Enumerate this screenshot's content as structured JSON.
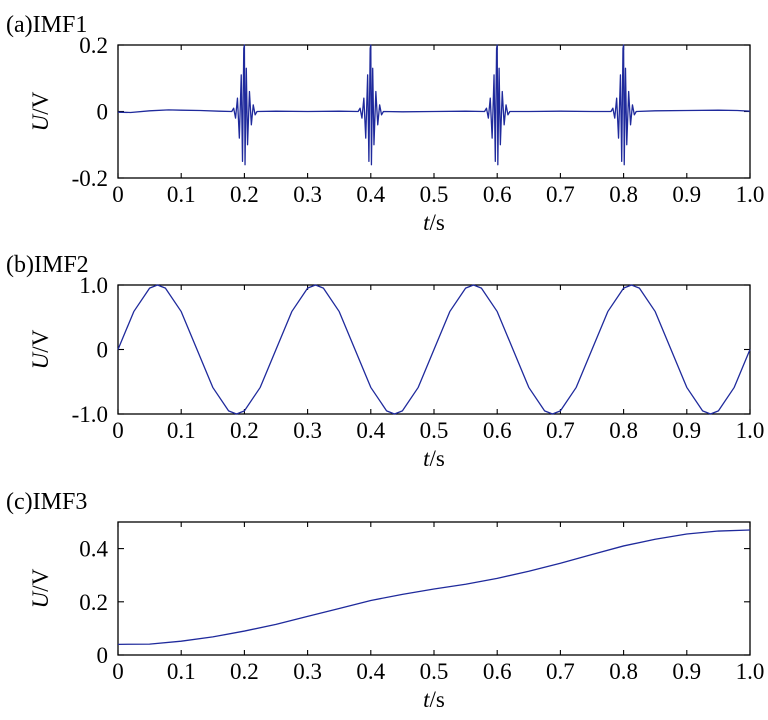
{
  "chart_data": [
    {
      "type": "line",
      "title": "(a)IMF1",
      "xlabel": {
        "italic": "t",
        "rest": "/s"
      },
      "ylabel": {
        "italic": "U",
        "rest": "/V"
      },
      "xlim": [
        0,
        1.0
      ],
      "ylim": [
        -0.2,
        0.2
      ],
      "xticks": [
        0,
        0.1,
        0.2,
        0.3,
        0.4,
        0.5,
        0.6,
        0.7,
        0.8,
        0.9,
        1.0
      ],
      "xtick_labels": [
        "0",
        "0.1",
        "0.2",
        "0.3",
        "0.4",
        "0.5",
        "0.6",
        "0.7",
        "0.8",
        "0.9",
        "1.0"
      ],
      "yticks": [
        -0.2,
        0,
        0.2
      ],
      "ytick_labels": [
        "-0.2",
        "0",
        "0.2"
      ],
      "grid": false,
      "color": "#1f2a9c",
      "series": [
        {
          "points": [
            [
              0,
              -0.002
            ],
            [
              0.02,
              -0.003
            ],
            [
              0.05,
              0.002
            ],
            [
              0.08,
              0.005
            ],
            [
              0.1,
              0.004
            ],
            [
              0.13,
              0.003
            ],
            [
              0.16,
              0.001
            ],
            [
              0.18,
              0
            ],
            [
              0.183,
              0.01
            ],
            [
              0.186,
              -0.02
            ],
            [
              0.189,
              0.04
            ],
            [
              0.192,
              -0.08
            ],
            [
              0.195,
              0.11
            ],
            [
              0.197,
              -0.15
            ],
            [
              0.199,
              0.19
            ],
            [
              0.2,
              0.2
            ],
            [
              0.201,
              -0.16
            ],
            [
              0.203,
              0.13
            ],
            [
              0.205,
              -0.1
            ],
            [
              0.208,
              0.06
            ],
            [
              0.211,
              -0.04
            ],
            [
              0.214,
              0.02
            ],
            [
              0.217,
              -0.01
            ],
            [
              0.22,
              0
            ],
            [
              0.25,
              0.001
            ],
            [
              0.3,
              0
            ],
            [
              0.35,
              0.001
            ],
            [
              0.38,
              0
            ],
            [
              0.383,
              0.01
            ],
            [
              0.386,
              -0.02
            ],
            [
              0.389,
              0.04
            ],
            [
              0.392,
              -0.08
            ],
            [
              0.395,
              0.11
            ],
            [
              0.397,
              -0.15
            ],
            [
              0.399,
              0.19
            ],
            [
              0.4,
              0.2
            ],
            [
              0.401,
              -0.16
            ],
            [
              0.403,
              0.13
            ],
            [
              0.405,
              -0.1
            ],
            [
              0.408,
              0.06
            ],
            [
              0.411,
              -0.04
            ],
            [
              0.414,
              0.02
            ],
            [
              0.417,
              -0.01
            ],
            [
              0.42,
              0
            ],
            [
              0.45,
              -0.001
            ],
            [
              0.5,
              0
            ],
            [
              0.55,
              0.001
            ],
            [
              0.58,
              0
            ],
            [
              0.583,
              0.01
            ],
            [
              0.586,
              -0.02
            ],
            [
              0.589,
              0.04
            ],
            [
              0.592,
              -0.08
            ],
            [
              0.595,
              0.11
            ],
            [
              0.597,
              -0.15
            ],
            [
              0.599,
              0.19
            ],
            [
              0.6,
              0.2
            ],
            [
              0.601,
              -0.16
            ],
            [
              0.603,
              0.13
            ],
            [
              0.605,
              -0.1
            ],
            [
              0.608,
              0.06
            ],
            [
              0.611,
              -0.04
            ],
            [
              0.614,
              0.02
            ],
            [
              0.617,
              -0.01
            ],
            [
              0.62,
              0
            ],
            [
              0.65,
              0
            ],
            [
              0.7,
              0.001
            ],
            [
              0.75,
              0
            ],
            [
              0.78,
              0
            ],
            [
              0.783,
              0.01
            ],
            [
              0.786,
              -0.02
            ],
            [
              0.789,
              0.04
            ],
            [
              0.792,
              -0.08
            ],
            [
              0.795,
              0.11
            ],
            [
              0.797,
              -0.15
            ],
            [
              0.799,
              0.19
            ],
            [
              0.8,
              0.2
            ],
            [
              0.801,
              -0.16
            ],
            [
              0.803,
              0.13
            ],
            [
              0.805,
              -0.1
            ],
            [
              0.808,
              0.06
            ],
            [
              0.811,
              -0.04
            ],
            [
              0.814,
              0.02
            ],
            [
              0.817,
              -0.01
            ],
            [
              0.82,
              0
            ],
            [
              0.85,
              0.002
            ],
            [
              0.9,
              0.003
            ],
            [
              0.95,
              0.004
            ],
            [
              0.98,
              0.003
            ],
            [
              1.0,
              0.001
            ]
          ]
        }
      ]
    },
    {
      "type": "line",
      "title": "(b)IMF2",
      "xlabel": {
        "italic": "t",
        "rest": "/s"
      },
      "ylabel": {
        "italic": "U",
        "rest": "/V"
      },
      "xlim": [
        0,
        1.0
      ],
      "ylim": [
        -1.0,
        1.0
      ],
      "xticks": [
        0,
        0.1,
        0.2,
        0.3,
        0.4,
        0.5,
        0.6,
        0.7,
        0.8,
        0.9,
        1.0
      ],
      "xtick_labels": [
        "0",
        "0.1",
        "0.2",
        "0.3",
        "0.4",
        "0.5",
        "0.6",
        "0.7",
        "0.8",
        "0.9",
        "1.0"
      ],
      "yticks": [
        -1.0,
        0,
        1.0
      ],
      "ytick_labels": [
        "-1.0",
        "0",
        "1.0"
      ],
      "grid": false,
      "color": "#1f2a9c",
      "series": [
        {
          "points": [
            [
              0,
              0
            ],
            [
              0.025,
              0.588
            ],
            [
              0.05,
              0.951
            ],
            [
              0.0625,
              1.0
            ],
            [
              0.075,
              0.951
            ],
            [
              0.1,
              0.588
            ],
            [
              0.125,
              0
            ],
            [
              0.15,
              -0.588
            ],
            [
              0.175,
              -0.951
            ],
            [
              0.1875,
              -1.0
            ],
            [
              0.2,
              -0.951
            ],
            [
              0.225,
              -0.588
            ],
            [
              0.25,
              0
            ],
            [
              0.275,
              0.588
            ],
            [
              0.3,
              0.951
            ],
            [
              0.3125,
              1.0
            ],
            [
              0.325,
              0.951
            ],
            [
              0.35,
              0.588
            ],
            [
              0.375,
              0
            ],
            [
              0.4,
              -0.588
            ],
            [
              0.425,
              -0.951
            ],
            [
              0.4375,
              -1.0
            ],
            [
              0.45,
              -0.951
            ],
            [
              0.475,
              -0.588
            ],
            [
              0.5,
              0
            ],
            [
              0.525,
              0.588
            ],
            [
              0.55,
              0.951
            ],
            [
              0.5625,
              1.0
            ],
            [
              0.575,
              0.951
            ],
            [
              0.6,
              0.588
            ],
            [
              0.625,
              0
            ],
            [
              0.65,
              -0.588
            ],
            [
              0.675,
              -0.951
            ],
            [
              0.6875,
              -1.0
            ],
            [
              0.7,
              -0.951
            ],
            [
              0.725,
              -0.588
            ],
            [
              0.75,
              0
            ],
            [
              0.775,
              0.588
            ],
            [
              0.8,
              0.951
            ],
            [
              0.8125,
              1.0
            ],
            [
              0.825,
              0.951
            ],
            [
              0.85,
              0.588
            ],
            [
              0.875,
              0
            ],
            [
              0.9,
              -0.588
            ],
            [
              0.925,
              -0.951
            ],
            [
              0.9375,
              -1.0
            ],
            [
              0.95,
              -0.951
            ],
            [
              0.975,
              -0.588
            ],
            [
              1.0,
              0
            ]
          ]
        }
      ]
    },
    {
      "type": "line",
      "title": "(c)IMF3",
      "xlabel": {
        "italic": "t",
        "rest": "/s"
      },
      "ylabel": {
        "italic": "U",
        "rest": "/V"
      },
      "xlim": [
        0,
        1.0
      ],
      "ylim": [
        0,
        0.5
      ],
      "xticks": [
        0,
        0.1,
        0.2,
        0.3,
        0.4,
        0.5,
        0.6,
        0.7,
        0.8,
        0.9,
        1.0
      ],
      "xtick_labels": [
        "0",
        "0.1",
        "0.2",
        "0.3",
        "0.4",
        "0.5",
        "0.6",
        "0.7",
        "0.8",
        "0.9",
        "1.0"
      ],
      "yticks": [
        0,
        0.2,
        0.4
      ],
      "ytick_labels": [
        "0",
        "0.2",
        "0.4"
      ],
      "grid": false,
      "color": "#1f2a9c",
      "series": [
        {
          "points": [
            [
              0,
              0.04
            ],
            [
              0.05,
              0.041
            ],
            [
              0.1,
              0.052
            ],
            [
              0.15,
              0.068
            ],
            [
              0.2,
              0.09
            ],
            [
              0.25,
              0.115
            ],
            [
              0.3,
              0.145
            ],
            [
              0.35,
              0.175
            ],
            [
              0.4,
              0.205
            ],
            [
              0.45,
              0.228
            ],
            [
              0.5,
              0.248
            ],
            [
              0.55,
              0.266
            ],
            [
              0.6,
              0.288
            ],
            [
              0.65,
              0.315
            ],
            [
              0.7,
              0.345
            ],
            [
              0.75,
              0.378
            ],
            [
              0.8,
              0.41
            ],
            [
              0.85,
              0.435
            ],
            [
              0.9,
              0.455
            ],
            [
              0.95,
              0.466
            ],
            [
              1.0,
              0.47
            ]
          ]
        }
      ]
    }
  ]
}
